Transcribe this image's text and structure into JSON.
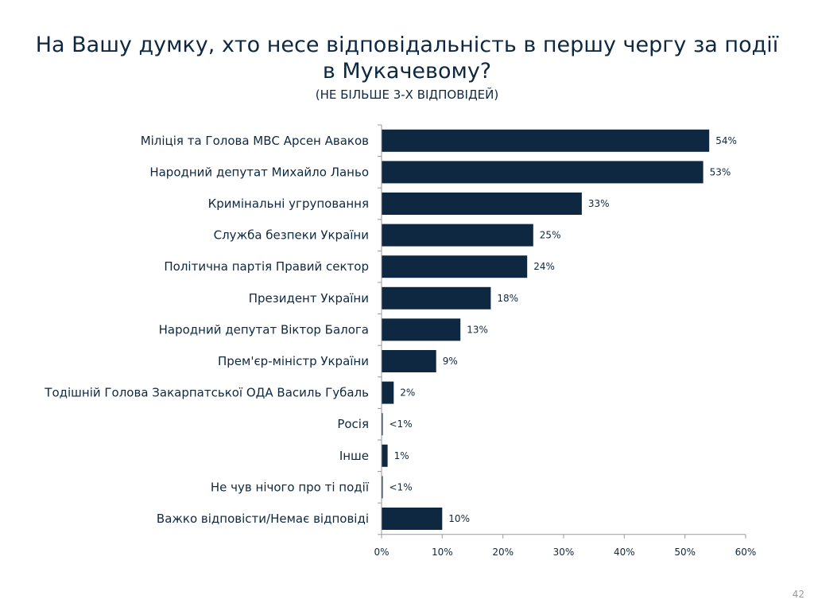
{
  "title": "На Вашу думку, хто несе відповідальність в першу чергу за події в Мукачевому?",
  "subtitle": "(НЕ БІЛЬШЕ 3-Х ВІДПОВІДЕЙ)",
  "page_number": "42",
  "colors": {
    "bar": "#0e2841",
    "text": "#0e2841",
    "axis": "#999999"
  },
  "chart_data": {
    "type": "bar",
    "orientation": "horizontal",
    "categories": [
      "Міліція та Голова МВС Арсен Аваков",
      "Народний депутат Михайло Ланьо",
      "Кримінальні угруповання",
      "Служба безпеки України",
      "Політична партія Правий сектор",
      "Президент України",
      "Народний депутат Віктор Балога",
      "Прем'єр-міністр України",
      "Тодішній Голова Закарпатської ОДА Василь Губаль",
      "Росія",
      "Інше",
      "Не чув нічого про ті події",
      "Важко відповісти/Немає відповіді"
    ],
    "values": [
      54,
      53,
      33,
      25,
      24,
      18,
      13,
      9,
      2,
      0.2,
      1,
      0.2,
      10
    ],
    "data_labels": [
      "54%",
      "53%",
      "33%",
      "25%",
      "24%",
      "18%",
      "13%",
      "9%",
      "2%",
      "<1%",
      "1%",
      "<1%",
      "10%"
    ],
    "xlim": [
      0,
      60
    ],
    "x_ticks": [
      0,
      10,
      20,
      30,
      40,
      50,
      60
    ],
    "x_tick_labels": [
      "0%",
      "10%",
      "20%",
      "30%",
      "40%",
      "50%",
      "60%"
    ],
    "grid": false,
    "legend": "none"
  }
}
